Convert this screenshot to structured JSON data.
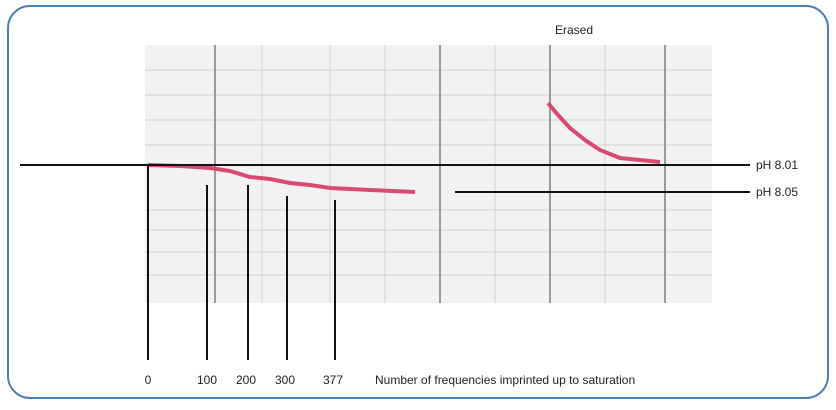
{
  "figure": {
    "annotations": {
      "erased": "Erased",
      "ph_top": "pH 8.01",
      "ph_bottom": "pH 8.05",
      "x_axis_label": "Number of frequencies imprinted up to saturation"
    },
    "markers": [
      0,
      100,
      200,
      300,
      377
    ]
  }
}
